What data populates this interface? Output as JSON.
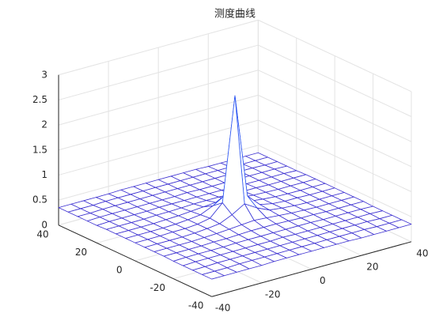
{
  "chart_data": {
    "type": "mesh",
    "title": "测度曲线",
    "x": [
      -40,
      -35,
      -30,
      -25,
      -20,
      -15,
      -10,
      -5,
      0,
      5,
      10,
      15,
      20,
      25,
      30,
      35,
      40
    ],
    "y": [
      -40,
      -35,
      -30,
      -25,
      -20,
      -15,
      -10,
      -5,
      0,
      5,
      10,
      15,
      20,
      25,
      30,
      35,
      40
    ],
    "z": [
      [
        0.35,
        0.35,
        0.35,
        0.35,
        0.35,
        0.36,
        0.36,
        0.36,
        0.36,
        0.36,
        0.36,
        0.36,
        0.35,
        0.35,
        0.35,
        0.35,
        0.35
      ],
      [
        0.35,
        0.35,
        0.35,
        0.36,
        0.36,
        0.36,
        0.36,
        0.36,
        0.36,
        0.36,
        0.36,
        0.36,
        0.36,
        0.36,
        0.35,
        0.35,
        0.35
      ],
      [
        0.35,
        0.35,
        0.36,
        0.36,
        0.36,
        0.36,
        0.36,
        0.36,
        0.36,
        0.36,
        0.36,
        0.36,
        0.36,
        0.36,
        0.36,
        0.35,
        0.35
      ],
      [
        0.35,
        0.36,
        0.36,
        0.36,
        0.36,
        0.36,
        0.36,
        0.36,
        0.37,
        0.36,
        0.36,
        0.36,
        0.36,
        0.36,
        0.36,
        0.36,
        0.35
      ],
      [
        0.35,
        0.36,
        0.36,
        0.36,
        0.36,
        0.37,
        0.37,
        0.37,
        0.37,
        0.37,
        0.37,
        0.37,
        0.36,
        0.36,
        0.36,
        0.36,
        0.35
      ],
      [
        0.36,
        0.36,
        0.36,
        0.36,
        0.37,
        0.37,
        0.38,
        0.39,
        0.39,
        0.39,
        0.38,
        0.37,
        0.37,
        0.36,
        0.36,
        0.36,
        0.36
      ],
      [
        0.36,
        0.36,
        0.36,
        0.36,
        0.37,
        0.38,
        0.4,
        0.42,
        0.44,
        0.42,
        0.4,
        0.38,
        0.37,
        0.36,
        0.36,
        0.36,
        0.36
      ],
      [
        0.36,
        0.36,
        0.36,
        0.36,
        0.37,
        0.39,
        0.42,
        0.53,
        0.68,
        0.53,
        0.42,
        0.39,
        0.37,
        0.36,
        0.36,
        0.36,
        0.36
      ],
      [
        0.36,
        0.36,
        0.36,
        0.37,
        0.37,
        0.39,
        0.44,
        0.68,
        2.75,
        0.68,
        0.44,
        0.39,
        0.37,
        0.37,
        0.36,
        0.36,
        0.36
      ],
      [
        0.36,
        0.36,
        0.36,
        0.36,
        0.37,
        0.39,
        0.42,
        0.53,
        0.68,
        0.53,
        0.42,
        0.39,
        0.37,
        0.36,
        0.36,
        0.36,
        0.36
      ],
      [
        0.36,
        0.36,
        0.36,
        0.36,
        0.37,
        0.38,
        0.4,
        0.42,
        0.44,
        0.42,
        0.4,
        0.38,
        0.37,
        0.36,
        0.36,
        0.36,
        0.36
      ],
      [
        0.36,
        0.36,
        0.36,
        0.36,
        0.37,
        0.37,
        0.38,
        0.39,
        0.39,
        0.39,
        0.38,
        0.37,
        0.37,
        0.36,
        0.36,
        0.36,
        0.36
      ],
      [
        0.35,
        0.36,
        0.36,
        0.36,
        0.36,
        0.37,
        0.37,
        0.37,
        0.37,
        0.37,
        0.37,
        0.37,
        0.36,
        0.36,
        0.36,
        0.36,
        0.35
      ],
      [
        0.35,
        0.36,
        0.36,
        0.36,
        0.36,
        0.36,
        0.36,
        0.36,
        0.37,
        0.36,
        0.36,
        0.36,
        0.36,
        0.36,
        0.36,
        0.36,
        0.35
      ],
      [
        0.35,
        0.35,
        0.36,
        0.36,
        0.36,
        0.36,
        0.36,
        0.36,
        0.36,
        0.36,
        0.36,
        0.36,
        0.36,
        0.36,
        0.36,
        0.35,
        0.35
      ],
      [
        0.35,
        0.35,
        0.35,
        0.36,
        0.36,
        0.36,
        0.36,
        0.36,
        0.36,
        0.36,
        0.36,
        0.36,
        0.36,
        0.36,
        0.35,
        0.35,
        0.35
      ],
      [
        0.35,
        0.35,
        0.35,
        0.35,
        0.35,
        0.36,
        0.36,
        0.36,
        0.36,
        0.36,
        0.36,
        0.36,
        0.35,
        0.35,
        0.35,
        0.35,
        0.35
      ]
    ],
    "xlim": [
      -40,
      40
    ],
    "ylim": [
      -40,
      40
    ],
    "zlim": [
      0,
      3
    ],
    "xticks": [
      -40,
      -20,
      0,
      20,
      40
    ],
    "yticks": [
      -40,
      -20,
      0,
      20,
      40
    ],
    "zticks": [
      0,
      0.5,
      1,
      1.5,
      2,
      2.5,
      3
    ],
    "grid": true,
    "colormap": [
      "#3b2fd0",
      "#2c55f2",
      "#1f9de0",
      "#2cc8c4"
    ]
  }
}
